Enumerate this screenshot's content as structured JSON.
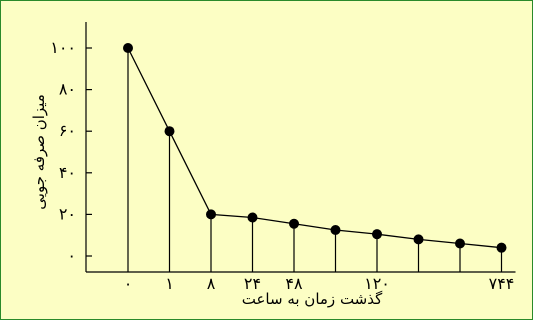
{
  "chart_data": {
    "type": "line",
    "title": "",
    "xlabel": "گذشت زمان به ساعت",
    "ylabel": "میزان صرفه جویی",
    "x_tick_labels": [
      "۰",
      "۱",
      "۸",
      "۲۴",
      "۴۸",
      "",
      "۱۲۰",
      "",
      "",
      "۷۴۴"
    ],
    "y_tick_labels": [
      "۰",
      "۲۰",
      "۴۰",
      "۶۰",
      "۸۰",
      "۱۰۰"
    ],
    "y_tick_values": [
      0,
      20,
      40,
      60,
      80,
      100
    ],
    "ylim": [
      0,
      100
    ],
    "grid": false,
    "series": [
      {
        "values": [
          100,
          60,
          20,
          18.5,
          15.5,
          12.5,
          10.5,
          8,
          6,
          4
        ]
      }
    ],
    "colors": {
      "background": "#fcfec4",
      "border": "#2a8a2a",
      "line": "#000000"
    }
  }
}
